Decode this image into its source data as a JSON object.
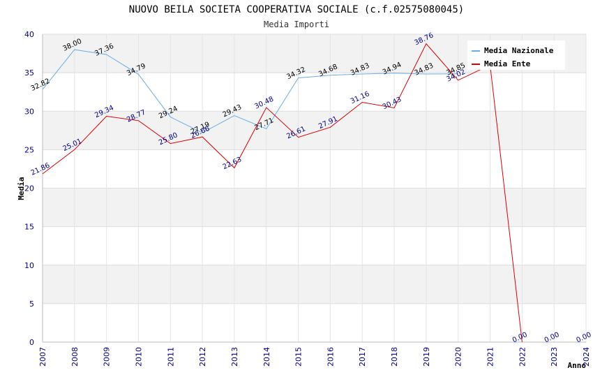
{
  "chart_data": {
    "type": "line",
    "title": "NUOVO BEILA SOCIETA COOPERATIVA SOCIALE (c.f.02575080045)",
    "subtitle": "Media Importi",
    "xlabel": "Anno",
    "ylabel": "Media",
    "ylim": [
      0,
      40
    ],
    "yticks": [
      0,
      5,
      10,
      15,
      20,
      25,
      30,
      35,
      40
    ],
    "x": [
      "2007",
      "2008",
      "2009",
      "2010",
      "2011",
      "2012",
      "2013",
      "2014",
      "2015",
      "2016",
      "2017",
      "2018",
      "2019",
      "2020",
      "2021",
      "2022",
      "2023",
      "2024"
    ],
    "series": [
      {
        "name": "Media Nazionale",
        "color": "#6aaee8",
        "values": [
          32.82,
          38.0,
          37.36,
          34.79,
          29.24,
          27.19,
          29.43,
          27.71,
          34.32,
          34.68,
          34.83,
          34.94,
          34.83,
          34.85,
          null,
          null,
          null,
          null
        ],
        "labels": [
          "32.82",
          "38.00",
          "37.36",
          "34.79",
          "29.24",
          "27.19",
          "29.43",
          "27.71",
          "34.32",
          "34.68",
          "34.83",
          "34.94",
          "34.83",
          "34.85",
          "",
          "",
          "",
          ""
        ]
      },
      {
        "name": "Media Ente",
        "color": "#dd0000",
        "values": [
          21.86,
          25.01,
          29.34,
          28.77,
          25.8,
          26.66,
          22.63,
          30.48,
          26.61,
          27.91,
          31.16,
          30.43,
          38.76,
          34.02,
          36.0,
          0.0,
          null,
          null
        ],
        "labels": [
          "21.86",
          "25.01",
          "29.34",
          "28.77",
          "25.80",
          "26.66",
          "22.63",
          "30.48",
          "26.61",
          "27.91",
          "31.16",
          "30.43",
          "38.76",
          "34.02",
          "",
          "0.00",
          "0.00",
          "0.00"
        ]
      }
    ],
    "legend": "top-right",
    "grid": true
  }
}
